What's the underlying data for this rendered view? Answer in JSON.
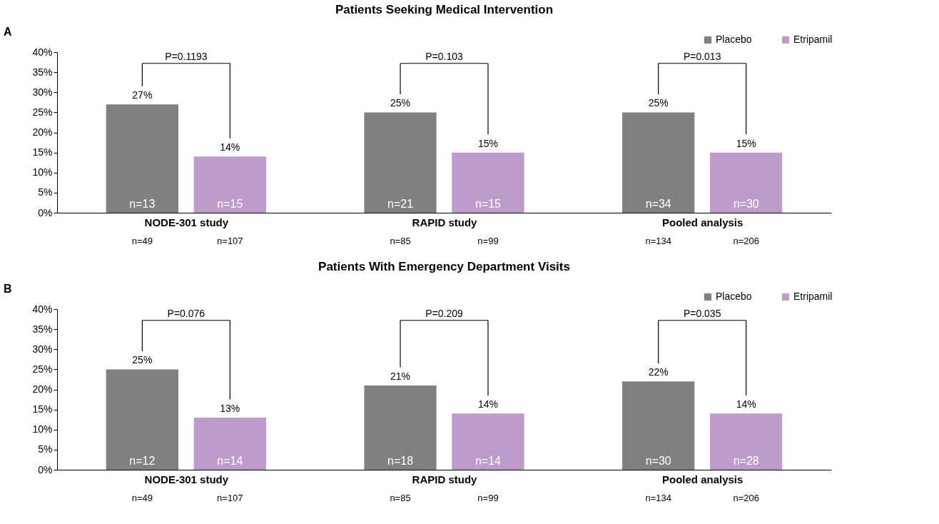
{
  "chart_data": [
    {
      "type": "bar",
      "title": "Patients Seeking Medical Intervention",
      "categories": [
        "NODE-301 study",
        "RAPID study",
        "Pooled analysis"
      ],
      "series": [
        {
          "name": "Placebo",
          "color": "#808080",
          "values": [
            27,
            25,
            25
          ],
          "value_labels": [
            "27%",
            "25%",
            "25%"
          ]
        },
        {
          "name": "Etripamil",
          "color": "#bd9ccb",
          "values": [
            14,
            15,
            15
          ],
          "value_labels": [
            "14%",
            "15%",
            "15%"
          ]
        }
      ],
      "ylim": [
        0,
        40
      ],
      "yticks": [
        {
          "value": 0,
          "label": "0%"
        },
        {
          "value": 5,
          "label": "5%"
        },
        {
          "value": 10,
          "label": "10%"
        },
        {
          "value": 15,
          "label": "15%"
        },
        {
          "value": 20,
          "label": "20%"
        },
        {
          "value": 25,
          "label": "25%"
        },
        {
          "value": 30,
          "label": "30%"
        },
        {
          "value": 35,
          "label": "35%"
        },
        {
          "value": 40,
          "label": "40%"
        }
      ],
      "legend": "top right",
      "grid": false,
      "annotations": [
        "A",
        "P=0.1193",
        "P=0.103",
        "P=0.013",
        "n=13",
        "n=21",
        "n=34",
        "n=15",
        "n=15",
        "n=30",
        "n=49",
        "n=85",
        "n=134",
        "n=107",
        "n=99",
        "n=206"
      ]
    },
    {
      "type": "bar",
      "title": "Patients With Emergency Department Visits",
      "categories": [
        "NODE-301 study",
        "RAPID study",
        "Pooled analysis"
      ],
      "series": [
        {
          "name": "Placebo",
          "color": "#808080",
          "values": [
            25,
            21,
            22
          ],
          "value_labels": [
            "25%",
            "21%",
            "22%"
          ]
        },
        {
          "name": "Etripamil",
          "color": "#bd9ccb",
          "values": [
            13,
            14,
            14
          ],
          "value_labels": [
            "13%",
            "14%",
            "14%"
          ]
        }
      ],
      "ylim": [
        0,
        40
      ],
      "yticks": [
        {
          "value": 0,
          "label": "0%"
        },
        {
          "value": 5,
          "label": "5%"
        },
        {
          "value": 10,
          "label": "10%"
        },
        {
          "value": 15,
          "label": "15%"
        },
        {
          "value": 20,
          "label": "20%"
        },
        {
          "value": 25,
          "label": "25%"
        },
        {
          "value": 30,
          "label": "30%"
        },
        {
          "value": 35,
          "label": "35%"
        },
        {
          "value": 40,
          "label": "40%"
        }
      ],
      "legend": "top right",
      "grid": false,
      "annotations": [
        "B",
        "P=0.076",
        "P=0.209",
        "P=0.035",
        "n=12",
        "n=18",
        "n=30",
        "n=14",
        "n=14",
        "n=28",
        "n=49",
        "n=85",
        "n=134",
        "n=107",
        "n=99",
        "n=206"
      ]
    }
  ]
}
